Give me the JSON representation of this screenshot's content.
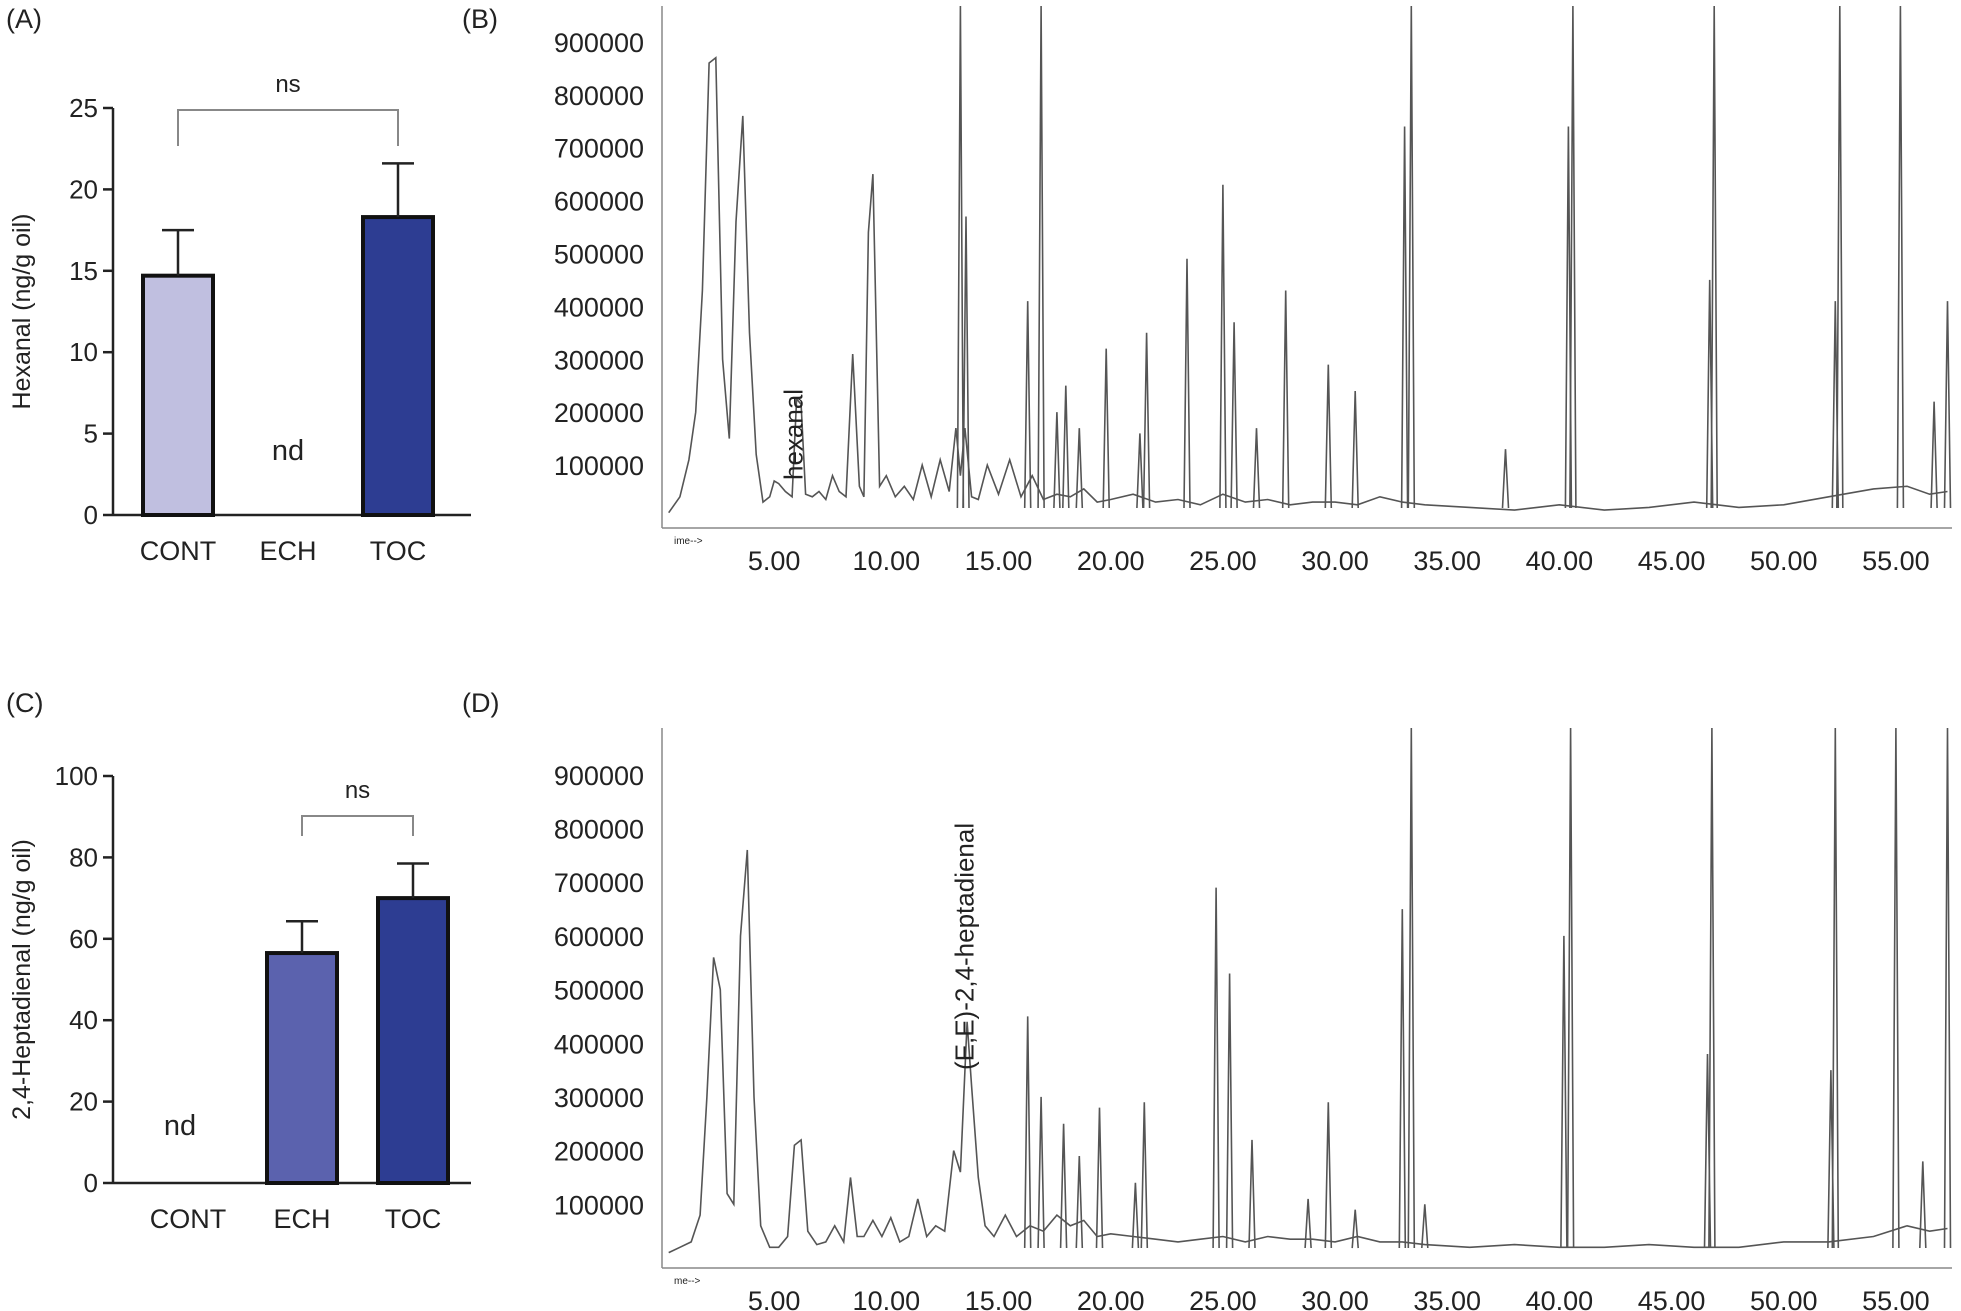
{
  "chart_data": [
    {
      "panel_label": "(A)",
      "type": "bar",
      "categories": [
        "CONT",
        "ECH",
        "TOC"
      ],
      "values": [
        14.7,
        0,
        18.3
      ],
      "errors": [
        2.8,
        0,
        3.3
      ],
      "bar_colors": [
        "#c0bfe0",
        "#ffffff",
        "#2d3d92"
      ],
      "value_notes": [
        "",
        "nd",
        ""
      ],
      "ylabel": "Hexanal (ng/g oil)",
      "ylim": [
        0,
        25
      ],
      "yticks": [
        "0",
        "5",
        "10",
        "15",
        "20",
        "25"
      ],
      "significance": {
        "from": "CONT",
        "to": "TOC",
        "label": "ns"
      }
    },
    {
      "panel_label": "(B)",
      "type": "line",
      "xticks": [
        "5.00",
        "10.00",
        "15.00",
        "20.00",
        "25.00",
        "30.00",
        "35.00",
        "40.00",
        "45.00",
        "50.00",
        "55.00"
      ],
      "yticks": [
        "100000",
        "200000",
        "300000",
        "400000",
        "500000",
        "600000",
        "700000",
        "800000",
        "900000"
      ],
      "xlim": [
        0,
        57.5
      ],
      "ylim": [
        0,
        930000
      ],
      "axis_stub": "ime-->",
      "annotation": {
        "text": "hexanal",
        "x": 5.2
      },
      "series": [
        {
          "x": [
            0.3,
            0.8,
            1.2,
            1.5,
            1.8,
            2.1,
            2.4,
            2.7,
            3.0,
            3.3,
            3.6,
            3.9,
            4.2,
            4.5,
            4.8,
            5.0,
            5.2,
            5.5,
            5.8,
            6.0,
            6.2,
            6.4,
            6.7,
            7.0,
            7.3,
            7.6,
            7.9,
            8.2,
            8.5,
            8.8,
            9.0,
            9.2,
            9.4,
            9.7,
            10.0,
            10.4,
            10.8,
            11.2,
            11.6,
            12.0,
            12.4,
            12.8,
            13.1,
            13.3,
            13.5,
            13.8,
            14.1,
            14.5,
            15.0,
            15.5,
            16.0,
            16.5,
            17.0,
            17.6,
            18.2,
            18.8,
            19.4,
            20.0,
            21.0,
            22.0,
            23.0,
            24.0,
            25.0,
            26.0,
            27.0,
            28.0,
            29.0,
            30.0,
            31.0,
            32.0,
            33.0,
            34.0,
            36.0,
            38.0,
            40.0,
            42.0,
            44.0,
            46.0,
            48.0,
            50.0,
            52.0,
            54.0,
            55.5,
            56.5,
            57.3
          ],
          "y": [
            10000,
            40000,
            110000,
            200000,
            430000,
            860000,
            870000,
            300000,
            150000,
            560000,
            760000,
            350000,
            120000,
            30000,
            40000,
            70000,
            65000,
            50000,
            40000,
            225000,
            215000,
            45000,
            40000,
            50000,
            35000,
            80000,
            50000,
            40000,
            310000,
            60000,
            40000,
            540000,
            650000,
            60000,
            80000,
            40000,
            60000,
            35000,
            100000,
            40000,
            110000,
            50000,
            170000,
            80000,
            170000,
            40000,
            35000,
            100000,
            45000,
            110000,
            40000,
            80000,
            35000,
            45000,
            40000,
            55000,
            30000,
            35000,
            45000,
            30000,
            35000,
            25000,
            45000,
            30000,
            35000,
            25000,
            30000,
            30000,
            25000,
            40000,
            30000,
            25000,
            20000,
            15000,
            25000,
            15000,
            20000,
            30000,
            20000,
            25000,
            40000,
            55000,
            60000,
            45000,
            50000
          ]
        }
      ],
      "peaks": [
        [
          13.3,
          1000000
        ],
        [
          13.55,
          570000
        ],
        [
          16.3,
          410000
        ],
        [
          16.9,
          1000000
        ],
        [
          17.6,
          200000
        ],
        [
          18.0,
          250000
        ],
        [
          18.6,
          170000
        ],
        [
          19.8,
          320000
        ],
        [
          21.3,
          160000
        ],
        [
          21.6,
          350000
        ],
        [
          23.4,
          490000
        ],
        [
          25.0,
          630000
        ],
        [
          25.5,
          370000
        ],
        [
          26.5,
          170000
        ],
        [
          27.8,
          430000
        ],
        [
          29.7,
          290000
        ],
        [
          30.9,
          240000
        ],
        [
          33.1,
          740000
        ],
        [
          33.4,
          1000000
        ],
        [
          37.6,
          130000
        ],
        [
          40.4,
          740000
        ],
        [
          40.6,
          1000000
        ],
        [
          46.7,
          450000
        ],
        [
          46.9,
          1000000
        ],
        [
          52.3,
          410000
        ],
        [
          52.5,
          1000000
        ],
        [
          55.2,
          1000000
        ],
        [
          56.7,
          220000
        ],
        [
          57.3,
          410000
        ]
      ]
    },
    {
      "panel_label": "(C)",
      "type": "bar",
      "categories": [
        "CONT",
        "ECH",
        "TOC"
      ],
      "values": [
        0,
        56.5,
        70.0
      ],
      "errors": [
        0,
        7.8,
        8.5
      ],
      "bar_colors": [
        "#ffffff",
        "#5b62ae",
        "#2d3d92"
      ],
      "value_notes": [
        "nd",
        "",
        ""
      ],
      "ylabel": "2,4-Heptadienal (ng/g oil)",
      "ylim": [
        0,
        100
      ],
      "yticks": [
        "0",
        "20",
        "40",
        "60",
        "80",
        "100"
      ],
      "significance": {
        "from": "ECH",
        "to": "TOC",
        "label": "ns"
      }
    },
    {
      "panel_label": "(D)",
      "type": "line",
      "xticks": [
        "5.00",
        "10.00",
        "15.00",
        "20.00",
        "25.00",
        "30.00",
        "35.00",
        "40.00",
        "45.00",
        "50.00",
        "55.00"
      ],
      "yticks": [
        "100000",
        "200000",
        "300000",
        "400000",
        "500000",
        "600000",
        "700000",
        "800000",
        "900000"
      ],
      "xlim": [
        0,
        57.5
      ],
      "ylim": [
        0,
        950000
      ],
      "axis_stub": "me-->",
      "annotation": {
        "text": "(E,E)-2,4-heptadienal",
        "x": 13.7
      },
      "series": [
        {
          "x": [
            0.3,
            0.8,
            1.3,
            1.7,
            2.0,
            2.3,
            2.6,
            2.9,
            3.2,
            3.5,
            3.8,
            4.1,
            4.4,
            4.8,
            5.2,
            5.6,
            5.9,
            6.2,
            6.5,
            6.9,
            7.3,
            7.7,
            8.1,
            8.4,
            8.7,
            9.0,
            9.4,
            9.8,
            10.2,
            10.6,
            11.0,
            11.4,
            11.8,
            12.2,
            12.6,
            13.0,
            13.3,
            13.6,
            13.8,
            14.1,
            14.4,
            14.8,
            15.3,
            15.8,
            16.4,
            17.0,
            17.6,
            18.2,
            18.8,
            19.4,
            20.0,
            21.0,
            22.0,
            23.0,
            24.0,
            25.0,
            26.0,
            27.0,
            28.0,
            29.0,
            30.0,
            31.0,
            32.0,
            33.0,
            34.0,
            36.0,
            38.0,
            40.0,
            42.0,
            44.0,
            46.0,
            48.0,
            50.0,
            52.0,
            54.0,
            55.5,
            56.5,
            57.3
          ],
          "y": [
            10000,
            20000,
            30000,
            80000,
            300000,
            560000,
            500000,
            120000,
            100000,
            600000,
            760000,
            300000,
            60000,
            20000,
            20000,
            40000,
            210000,
            220000,
            50000,
            25000,
            30000,
            60000,
            30000,
            150000,
            40000,
            40000,
            70000,
            40000,
            75000,
            30000,
            40000,
            110000,
            40000,
            60000,
            50000,
            200000,
            160000,
            440000,
            320000,
            150000,
            60000,
            40000,
            80000,
            40000,
            60000,
            50000,
            80000,
            60000,
            70000,
            40000,
            45000,
            40000,
            35000,
            30000,
            35000,
            40000,
            30000,
            40000,
            35000,
            35000,
            30000,
            40000,
            30000,
            30000,
            25000,
            20000,
            25000,
            20000,
            20000,
            25000,
            20000,
            20000,
            30000,
            30000,
            40000,
            60000,
            50000,
            55000
          ]
        }
      ],
      "peaks": [
        [
          16.3,
          450000
        ],
        [
          16.9,
          300000
        ],
        [
          17.9,
          250000
        ],
        [
          18.6,
          190000
        ],
        [
          19.5,
          280000
        ],
        [
          21.1,
          140000
        ],
        [
          21.5,
          290000
        ],
        [
          24.7,
          690000
        ],
        [
          25.3,
          530000
        ],
        [
          26.3,
          220000
        ],
        [
          28.8,
          110000
        ],
        [
          29.7,
          290000
        ],
        [
          30.9,
          90000
        ],
        [
          33.0,
          650000
        ],
        [
          33.4,
          1000000
        ],
        [
          34.0,
          100000
        ],
        [
          40.2,
          600000
        ],
        [
          40.5,
          1000000
        ],
        [
          46.6,
          380000
        ],
        [
          46.8,
          1000000
        ],
        [
          52.1,
          350000
        ],
        [
          52.3,
          1000000
        ],
        [
          55.0,
          1000000
        ],
        [
          56.2,
          180000
        ],
        [
          57.3,
          1000000
        ]
      ]
    }
  ]
}
